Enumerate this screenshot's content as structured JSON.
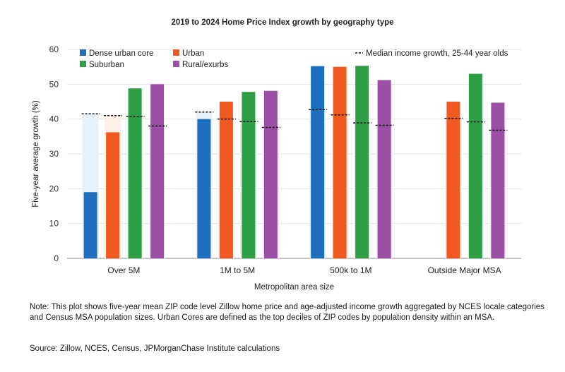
{
  "chart_data": {
    "type": "bar",
    "title": "2019 to 2024 Home Price Index growth by geography type",
    "xlabel": "Metropolitan area size",
    "ylabel": "Five-year average growth (%)",
    "ylim": [
      0,
      60
    ],
    "yticks": [
      0,
      10,
      20,
      30,
      40,
      50,
      60
    ],
    "categories": [
      "Over 5M",
      "1M to 5M",
      "500k to 1M",
      "Outside Major MSA"
    ],
    "series": [
      {
        "name": "Dense urban core",
        "color": "#1f6fbf",
        "values": [
          19.0,
          40.0,
          55.2,
          null
        ],
        "income": [
          41.5,
          42.0,
          42.7,
          null
        ]
      },
      {
        "name": "Urban",
        "color": "#f05a22",
        "values": [
          36.2,
          45.0,
          55.0,
          45.0
        ],
        "income": [
          41.0,
          40.0,
          41.2,
          40.2
        ]
      },
      {
        "name": "Suburban",
        "color": "#2e9e47",
        "values": [
          48.8,
          47.8,
          55.3,
          53.0
        ],
        "income": [
          40.8,
          39.3,
          38.9,
          39.2
        ]
      },
      {
        "name": "Rural/exurbs",
        "color": "#9b4fa5",
        "values": [
          50.0,
          48.1,
          51.2,
          44.7
        ],
        "income": [
          38.0,
          37.6,
          38.2,
          36.8
        ]
      }
    ],
    "legend_extra": "Median income growth, 25-44 year olds",
    "legend_position": "top"
  },
  "footnote": {
    "note": "Note: This plot shows five-year mean ZIP code level Zillow home price and age-adjusted income growth aggregated by NCES locale categories and Census MSA population sizes. Urban Cores are defined as the top deciles of ZIP codes by population density within an MSA.",
    "source": "Source: Zillow, NCES, Census, JPMorganChase Institute calculations"
  }
}
